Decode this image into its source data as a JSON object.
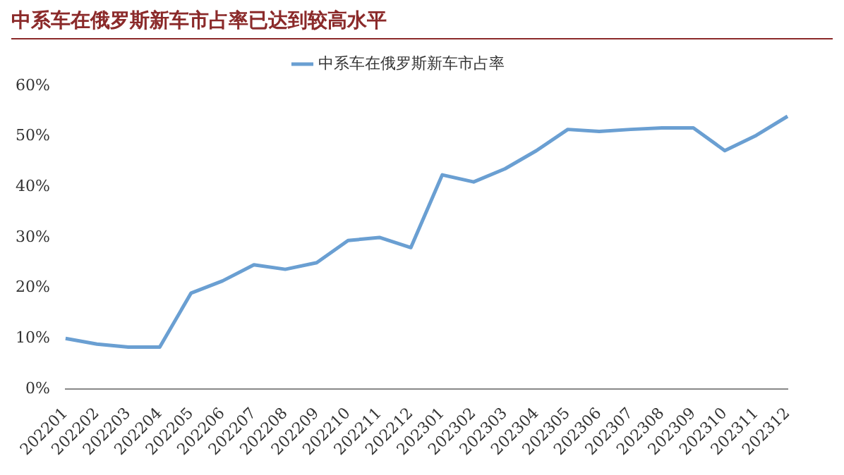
{
  "chart_data": {
    "type": "line",
    "title": "中系车在俄罗斯新车市占率已达到较高水平",
    "categories": [
      "202201",
      "202202",
      "202203",
      "202204",
      "202205",
      "202206",
      "202207",
      "202208",
      "202209",
      "202210",
      "202211",
      "202212",
      "202301",
      "202302",
      "202303",
      "202304",
      "202305",
      "202306",
      "202307",
      "202308",
      "202309",
      "202310",
      "202311",
      "202312"
    ],
    "series": [
      {
        "name": "中系车在俄罗斯新车市占率",
        "color": "#6a9fd2",
        "values": [
          10,
          8.9,
          8.3,
          8.3,
          19,
          21.4,
          24.6,
          23.7,
          25,
          29.4,
          30,
          28,
          42.4,
          41,
          43.6,
          47.2,
          51.4,
          51,
          51.4,
          51.7,
          51.7,
          47.2,
          50.2,
          54
        ]
      }
    ],
    "ylim": [
      0,
      60
    ],
    "yticks": [
      {
        "value": 0,
        "label": "0%"
      },
      {
        "value": 10,
        "label": "10%"
      },
      {
        "value": 20,
        "label": "20%"
      },
      {
        "value": 30,
        "label": "30%"
      },
      {
        "value": 40,
        "label": "40%"
      },
      {
        "value": 50,
        "label": "50%"
      },
      {
        "value": 60,
        "label": "60%"
      }
    ],
    "grid": false,
    "legend": "top",
    "marker": "none",
    "line_style": "solid"
  }
}
